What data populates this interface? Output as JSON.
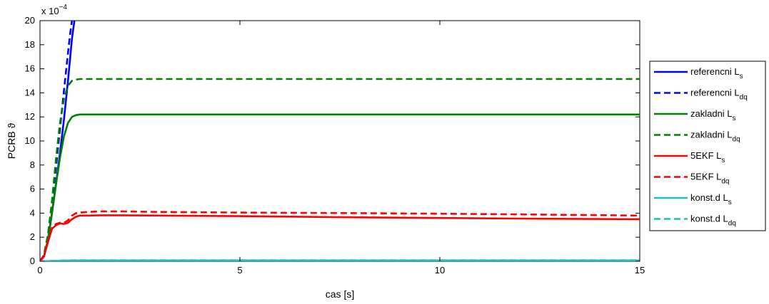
{
  "chart_data": {
    "type": "line",
    "title": "",
    "xlabel": "cas [s]",
    "ylabel": "PCRB ϑ",
    "y_multiplier": "x 10",
    "y_multiplier_exp": "−4",
    "xlim": [
      0,
      15
    ],
    "ylim": [
      0,
      20
    ],
    "x_ticks": [
      0,
      5,
      10,
      15
    ],
    "y_ticks": [
      0,
      2,
      4,
      6,
      8,
      10,
      12,
      14,
      16,
      18,
      20
    ],
    "grid": false,
    "legend_position": "right",
    "series": [
      {
        "name": "referencni L",
        "name_sub": "s",
        "color": "#0000ff",
        "dash": "solid",
        "x": [
          0,
          0.1,
          0.2,
          0.3,
          0.4,
          0.5,
          0.6,
          0.7,
          0.8,
          0.86
        ],
        "y": [
          0,
          0.4,
          1.8,
          4.0,
          6.4,
          9.0,
          11.8,
          15.0,
          18.5,
          20
        ]
      },
      {
        "name": "referencni L",
        "name_sub": "dq",
        "color": "#0000ff",
        "dash": "dashed",
        "x": [
          0,
          0.1,
          0.2,
          0.3,
          0.4,
          0.5,
          0.6,
          0.7,
          0.75,
          0.8
        ],
        "y": [
          0,
          0.5,
          2.2,
          4.8,
          7.8,
          11.0,
          14.2,
          17.3,
          18.8,
          20
        ]
      },
      {
        "name": "zakladni L",
        "name_sub": "s",
        "color": "#008000",
        "dash": "solid",
        "x": [
          0,
          0.1,
          0.2,
          0.3,
          0.4,
          0.5,
          0.6,
          0.7,
          0.8,
          0.9,
          1.0,
          1.2,
          1.5,
          2,
          3,
          5,
          8,
          10,
          12,
          15
        ],
        "y": [
          0,
          0.4,
          1.8,
          4.0,
          6.4,
          8.6,
          10.4,
          11.5,
          12.0,
          12.15,
          12.2,
          12.2,
          12.2,
          12.2,
          12.2,
          12.2,
          12.2,
          12.2,
          12.2,
          12.2
        ]
      },
      {
        "name": "zakladni L",
        "name_sub": "dq",
        "color": "#008000",
        "dash": "dashed",
        "x": [
          0,
          0.1,
          0.2,
          0.3,
          0.4,
          0.5,
          0.6,
          0.7,
          0.8,
          0.9,
          1.0,
          1.2,
          1.5,
          2,
          3,
          5,
          8,
          10,
          12,
          15
        ],
        "y": [
          0,
          0.5,
          2.2,
          5.0,
          8.5,
          11.5,
          13.5,
          14.6,
          15.0,
          15.1,
          15.15,
          15.15,
          15.15,
          15.15,
          15.15,
          15.15,
          15.15,
          15.15,
          15.15,
          15.15
        ]
      },
      {
        "name": "5EKF L",
        "name_sub": "s",
        "color": "#ff0000",
        "dash": "solid",
        "x": [
          0,
          0.1,
          0.2,
          0.3,
          0.4,
          0.5,
          0.6,
          0.7,
          0.8,
          0.9,
          1.0,
          1.2,
          1.5,
          2,
          3,
          5,
          8,
          10,
          12,
          15
        ],
        "y": [
          0,
          0.4,
          1.6,
          2.7,
          3.0,
          3.15,
          3.1,
          3.2,
          3.5,
          3.7,
          3.8,
          3.8,
          3.82,
          3.82,
          3.8,
          3.75,
          3.65,
          3.6,
          3.55,
          3.5
        ]
      },
      {
        "name": "5EKF L",
        "name_sub": "dq",
        "color": "#ff0000",
        "dash": "dashed",
        "x": [
          0,
          0.1,
          0.2,
          0.3,
          0.4,
          0.5,
          0.6,
          0.7,
          0.8,
          0.9,
          1.0,
          1.2,
          1.5,
          2,
          3,
          5,
          8,
          10,
          12,
          15
        ],
        "y": [
          0,
          0.5,
          1.7,
          2.8,
          3.1,
          3.2,
          3.2,
          3.4,
          3.8,
          4.0,
          4.05,
          4.1,
          4.15,
          4.15,
          4.1,
          4.05,
          4.0,
          3.95,
          3.9,
          3.8
        ]
      },
      {
        "name": "konst.d L",
        "name_sub": "s",
        "color": "#1fbfbf",
        "dash": "solid",
        "x": [
          0,
          0.3,
          0.6,
          1,
          2,
          5,
          8,
          10,
          12,
          15
        ],
        "y": [
          0,
          0.03,
          0.06,
          0.07,
          0.07,
          0.07,
          0.07,
          0.07,
          0.07,
          0.07
        ]
      },
      {
        "name": "konst.d L",
        "name_sub": "dq",
        "color": "#1fbfbf",
        "dash": "dashed",
        "x": [
          0,
          0.3,
          0.6,
          1,
          2,
          5,
          8,
          10,
          12,
          15
        ],
        "y": [
          0,
          0.04,
          0.07,
          0.09,
          0.09,
          0.09,
          0.09,
          0.09,
          0.09,
          0.09
        ]
      }
    ]
  }
}
